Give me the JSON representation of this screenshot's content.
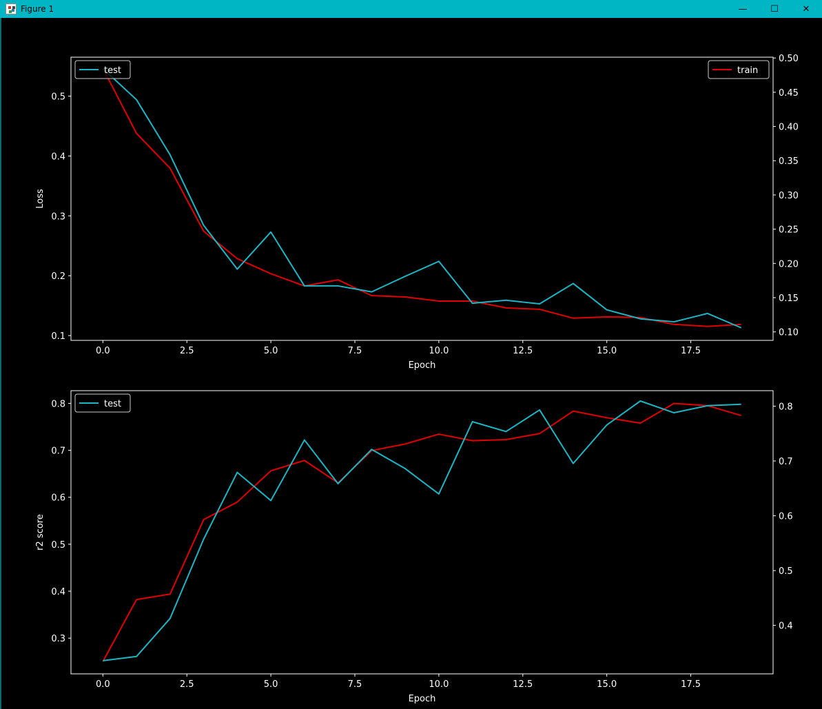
{
  "window": {
    "title": "Figure 1",
    "icon": "matplotlib-figure-icon",
    "controls": [
      "minimize-icon",
      "maximize-icon",
      "close-icon"
    ]
  },
  "colors": {
    "background": "#000000",
    "axes": "#ffffff",
    "train": "#e00000",
    "test": "#1bb7c6",
    "titlebar": "#00b6c5"
  },
  "chart_data": [
    {
      "type": "line",
      "xlabel": "Epoch",
      "ylabel": "Loss",
      "x": [
        0,
        1,
        2,
        3,
        4,
        5,
        6,
        7,
        8,
        9,
        10,
        11,
        12,
        13,
        14,
        15,
        16,
        17,
        18,
        19
      ],
      "xlim": [
        -0.95,
        19.95
      ],
      "xticks": [
        0.0,
        2.5,
        5.0,
        7.5,
        10.0,
        12.5,
        15.0,
        17.5
      ],
      "xtick_labels": [
        "0.0",
        "2.5",
        "5.0",
        "7.5",
        "10.0",
        "12.5",
        "15.0",
        "17.5"
      ],
      "y_left": {
        "lim": [
          0.092,
          0.565
        ],
        "ticks": [
          0.1,
          0.2,
          0.3,
          0.4,
          0.5
        ],
        "tick_labels": [
          "0.1",
          "0.2",
          "0.3",
          "0.4",
          "0.5"
        ]
      },
      "y_right": {
        "lim": [
          0.0876,
          0.5012
        ],
        "ticks": [
          0.1,
          0.15,
          0.2,
          0.25,
          0.3,
          0.35,
          0.4,
          0.45,
          0.5
        ],
        "tick_labels": [
          "0.10",
          "0.15",
          "0.20",
          "0.25",
          "0.30",
          "0.35",
          "0.40",
          "0.45",
          "0.50"
        ]
      },
      "series": [
        {
          "name": "test",
          "axis": "left",
          "color": "#1bb7c6",
          "values": [
            0.546,
            0.494,
            0.402,
            0.284,
            0.211,
            0.273,
            0.183,
            0.183,
            0.173,
            0.199,
            0.224,
            0.154,
            0.159,
            0.153,
            0.187,
            0.143,
            0.128,
            0.123,
            0.137,
            0.113
          ]
        },
        {
          "name": "train",
          "axis": "right",
          "color": "#e00000",
          "values": [
            0.485,
            0.39,
            0.339,
            0.247,
            0.207,
            0.185,
            0.167,
            0.176,
            0.153,
            0.151,
            0.145,
            0.145,
            0.135,
            0.133,
            0.12,
            0.122,
            0.121,
            0.111,
            0.108,
            0.111
          ]
        }
      ],
      "legends": [
        {
          "placement": "top-left",
          "entries": [
            "test"
          ]
        },
        {
          "placement": "top-right",
          "entries": [
            "train"
          ]
        }
      ]
    },
    {
      "type": "line",
      "xlabel": "Epoch",
      "ylabel": "r2 score",
      "x": [
        0,
        1,
        2,
        3,
        4,
        5,
        6,
        7,
        8,
        9,
        10,
        11,
        12,
        13,
        14,
        15,
        16,
        17,
        18,
        19
      ],
      "xlim": [
        -0.95,
        19.95
      ],
      "xticks": [
        0.0,
        2.5,
        5.0,
        7.5,
        10.0,
        12.5,
        15.0,
        17.5
      ],
      "xtick_labels": [
        "0.0",
        "2.5",
        "5.0",
        "7.5",
        "10.0",
        "12.5",
        "15.0",
        "17.5"
      ],
      "y_left": {
        "lim": [
          0.224,
          0.827
        ],
        "ticks": [
          0.3,
          0.4,
          0.5,
          0.6,
          0.7,
          0.8
        ],
        "tick_labels": [
          "0.3",
          "0.4",
          "0.5",
          "0.6",
          "0.7",
          "0.8"
        ]
      },
      "y_right": {
        "lim": [
          0.3115,
          0.8283
        ],
        "ticks": [
          0.4,
          0.5,
          0.6,
          0.7,
          0.8
        ],
        "tick_labels": [
          "0.4",
          "0.5",
          "0.6",
          "0.7",
          "0.8"
        ]
      },
      "series": [
        {
          "name": "test",
          "axis": "left",
          "color": "#1bb7c6",
          "values": [
            0.252,
            0.261,
            0.342,
            0.511,
            0.653,
            0.593,
            0.722,
            0.629,
            0.702,
            0.661,
            0.607,
            0.761,
            0.74,
            0.786,
            0.672,
            0.754,
            0.805,
            0.78,
            0.795,
            0.798
          ]
        },
        {
          "name": "train",
          "axis": "right",
          "color": "#e00000",
          "values": [
            0.334,
            0.447,
            0.457,
            0.593,
            0.625,
            0.682,
            0.701,
            0.66,
            0.719,
            0.731,
            0.749,
            0.737,
            0.739,
            0.75,
            0.791,
            0.779,
            0.769,
            0.805,
            0.801,
            0.783
          ]
        }
      ],
      "legends": [
        {
          "placement": "top-left",
          "entries": [
            "test"
          ]
        }
      ]
    }
  ]
}
